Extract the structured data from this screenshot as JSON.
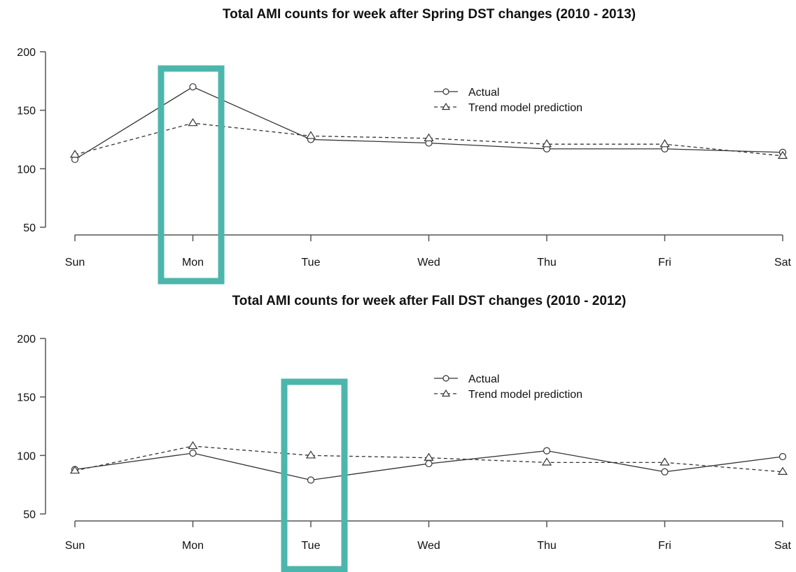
{
  "chart_data": [
    {
      "type": "line",
      "title": "Total AMI counts for week after Spring DST changes (2010 - 2013)",
      "categories": [
        "Sun",
        "Mon",
        "Tue",
        "Wed",
        "Thu",
        "Fri",
        "Sat"
      ],
      "yticks": [
        "50",
        "100",
        "150",
        "200"
      ],
      "ylim": [
        50,
        200
      ],
      "legend_position": "top-right",
      "series": [
        {
          "name": "Actual",
          "values": [
            108,
            170,
            125,
            122,
            117,
            117,
            114
          ],
          "line": "solid",
          "marker": "circle"
        },
        {
          "name": "Trend model prediction",
          "values": [
            112,
            139,
            128,
            126,
            121,
            121,
            111
          ],
          "line": "dashed",
          "marker": "triangle"
        }
      ],
      "highlight": {
        "category": "Mon",
        "color": "#4db6ac"
      }
    },
    {
      "type": "line",
      "title": "Total AMI counts for week after Fall DST changes (2010 - 2012)",
      "categories": [
        "Sun",
        "Mon",
        "Tue",
        "Wed",
        "Thu",
        "Fri",
        "Sat"
      ],
      "yticks": [
        "50",
        "100",
        "150",
        "200"
      ],
      "ylim": [
        50,
        200
      ],
      "legend_position": "top-right",
      "series": [
        {
          "name": "Actual",
          "values": [
            88,
            102,
            79,
            93,
            104,
            86,
            99
          ],
          "line": "solid",
          "marker": "circle"
        },
        {
          "name": "Trend model prediction",
          "values": [
            87,
            108,
            100,
            98,
            94,
            94,
            86
          ],
          "line": "dashed",
          "marker": "triangle"
        }
      ],
      "highlight": {
        "category": "Tue",
        "color": "#4db6ac"
      }
    }
  ]
}
